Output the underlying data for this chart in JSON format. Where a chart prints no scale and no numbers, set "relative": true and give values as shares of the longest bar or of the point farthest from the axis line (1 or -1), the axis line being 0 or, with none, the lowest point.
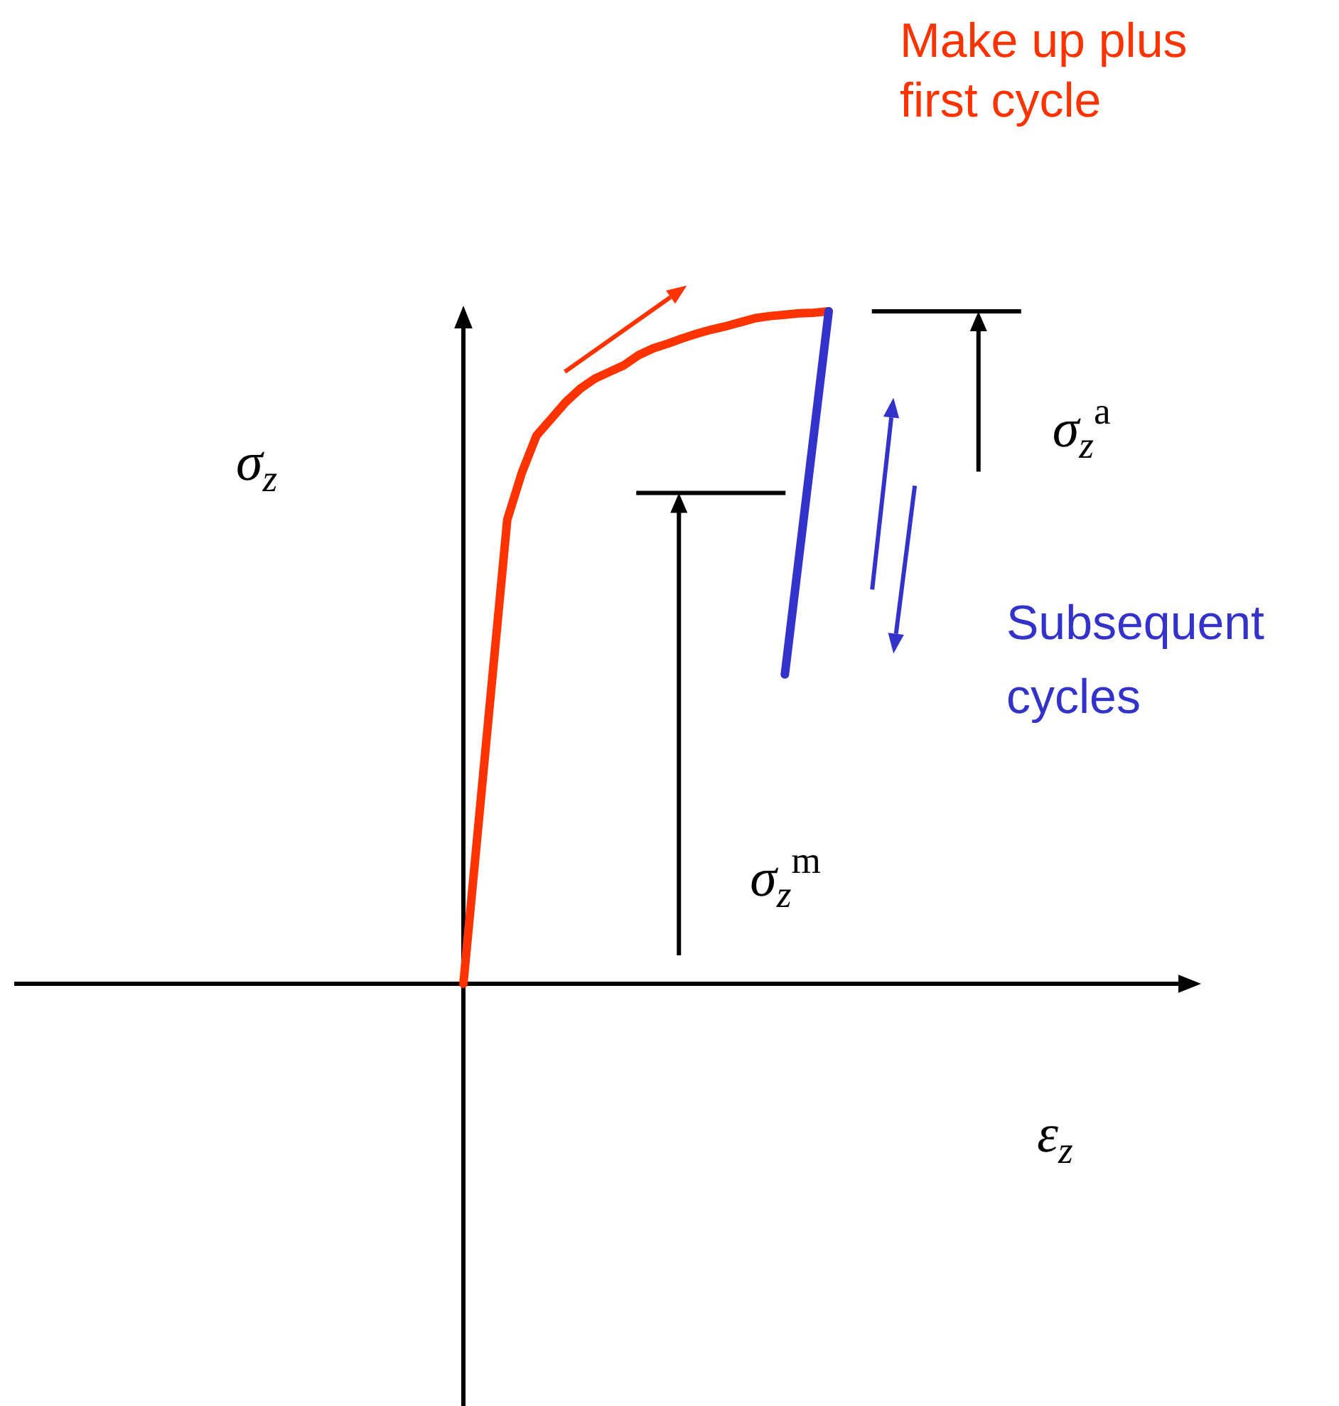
{
  "chart_data": {
    "type": "line",
    "relative": true,
    "xlabel": "ε$_{z}$",
    "ylabel": "σ$_{z}$",
    "categories": [
      null,
      null,
      null,
      null,
      null,
      null,
      null,
      null,
      null,
      null,
      null,
      null,
      null,
      null,
      null,
      null,
      null,
      null,
      null,
      null,
      null,
      null,
      null,
      null,
      null,
      null
    ],
    "series": [
      {
        "name": "Make up plus first cycle",
        "color": "#ff3300",
        "values": [
          0,
          0.23,
          0.46,
          0.69,
          0.76,
          0.815,
          0.84,
          0.865,
          0.885,
          0.9,
          0.91,
          0.92,
          0.935,
          0.945,
          0.952,
          0.96,
          0.967,
          0.973,
          0.978,
          0.984,
          0.99,
          0.993,
          0.995,
          0.997,
          0.998,
          1
        ]
      },
      {
        "name": "Subsequent cycles",
        "color": "#3333cc",
        "values": [
          null,
          null,
          null,
          null,
          null,
          null,
          null,
          null,
          null,
          null,
          null,
          null,
          null,
          null,
          null,
          null,
          null,
          null,
          null,
          null,
          null,
          null,
          0.46,
          0.64,
          0.82,
          1
        ]
      }
    ],
    "annotations": [
      "σ$_{z}$$^{m}$",
      "σ$_{z}$$^{a}$"
    ]
  }
}
